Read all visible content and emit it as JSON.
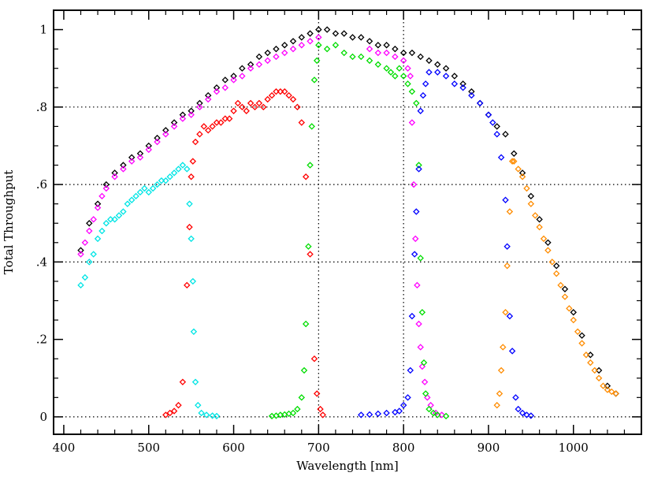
{
  "chart_data": {
    "type": "scatter",
    "title": "",
    "xlabel": "Wavelength [nm]",
    "ylabel": "Total Throughput",
    "xlim": [
      388,
      1080
    ],
    "ylim": [
      -0.045,
      1.05
    ],
    "x_ticks": [
      400,
      500,
      600,
      700,
      800,
      900,
      1000
    ],
    "x_tick_labels": [
      "400",
      "500",
      "600",
      "700",
      "800",
      "900",
      "1000"
    ],
    "y_ticks": [
      0,
      0.2,
      0.4,
      0.6,
      0.8,
      1
    ],
    "y_tick_labels": [
      "0",
      ".2",
      ".4",
      ".6",
      ".8",
      "1"
    ],
    "grid": {
      "horizontal_dotted": [
        0,
        0.4,
        0.6,
        0.8
      ],
      "vertical_dotted": [
        700,
        800
      ]
    },
    "marker": "open-diamond",
    "series": [
      {
        "name": "total",
        "color": "#000000",
        "points": [
          [
            420,
            0.43
          ],
          [
            430,
            0.5
          ],
          [
            440,
            0.55
          ],
          [
            450,
            0.6
          ],
          [
            460,
            0.63
          ],
          [
            470,
            0.65
          ],
          [
            480,
            0.67
          ],
          [
            490,
            0.68
          ],
          [
            500,
            0.7
          ],
          [
            510,
            0.72
          ],
          [
            520,
            0.74
          ],
          [
            530,
            0.76
          ],
          [
            540,
            0.78
          ],
          [
            550,
            0.79
          ],
          [
            560,
            0.81
          ],
          [
            570,
            0.83
          ],
          [
            580,
            0.85
          ],
          [
            590,
            0.87
          ],
          [
            600,
            0.88
          ],
          [
            610,
            0.9
          ],
          [
            620,
            0.91
          ],
          [
            630,
            0.93
          ],
          [
            640,
            0.94
          ],
          [
            650,
            0.95
          ],
          [
            660,
            0.96
          ],
          [
            670,
            0.97
          ],
          [
            680,
            0.98
          ],
          [
            690,
            0.99
          ],
          [
            700,
            1.0
          ],
          [
            710,
            1.0
          ],
          [
            720,
            0.99
          ],
          [
            730,
            0.99
          ],
          [
            740,
            0.98
          ],
          [
            750,
            0.98
          ],
          [
            760,
            0.97
          ],
          [
            770,
            0.96
          ],
          [
            780,
            0.96
          ],
          [
            790,
            0.95
          ],
          [
            800,
            0.94
          ],
          [
            810,
            0.94
          ],
          [
            820,
            0.93
          ],
          [
            830,
            0.92
          ],
          [
            840,
            0.91
          ],
          [
            850,
            0.9
          ],
          [
            860,
            0.88
          ],
          [
            870,
            0.86
          ],
          [
            880,
            0.84
          ],
          [
            890,
            0.81
          ],
          [
            900,
            0.78
          ],
          [
            910,
            0.75
          ],
          [
            920,
            0.73
          ],
          [
            930,
            0.68
          ],
          [
            940,
            0.63
          ],
          [
            950,
            0.57
          ],
          [
            960,
            0.51
          ],
          [
            970,
            0.45
          ],
          [
            980,
            0.39
          ],
          [
            990,
            0.33
          ],
          [
            1000,
            0.27
          ],
          [
            1010,
            0.21
          ],
          [
            1020,
            0.16
          ],
          [
            1030,
            0.12
          ],
          [
            1040,
            0.08
          ],
          [
            1050,
            0.06
          ]
        ]
      },
      {
        "name": "magenta",
        "color": "#ff00ff",
        "points": [
          [
            420,
            0.42
          ],
          [
            425,
            0.45
          ],
          [
            430,
            0.48
          ],
          [
            435,
            0.51
          ],
          [
            440,
            0.54
          ],
          [
            445,
            0.57
          ],
          [
            450,
            0.59
          ],
          [
            460,
            0.62
          ],
          [
            470,
            0.64
          ],
          [
            480,
            0.66
          ],
          [
            490,
            0.67
          ],
          [
            500,
            0.69
          ],
          [
            510,
            0.71
          ],
          [
            520,
            0.73
          ],
          [
            530,
            0.75
          ],
          [
            540,
            0.77
          ],
          [
            550,
            0.78
          ],
          [
            560,
            0.8
          ],
          [
            570,
            0.82
          ],
          [
            580,
            0.84
          ],
          [
            590,
            0.85
          ],
          [
            600,
            0.87
          ],
          [
            610,
            0.88
          ],
          [
            620,
            0.9
          ],
          [
            630,
            0.91
          ],
          [
            640,
            0.92
          ],
          [
            650,
            0.93
          ],
          [
            660,
            0.94
          ],
          [
            670,
            0.95
          ],
          [
            680,
            0.96
          ],
          [
            690,
            0.97
          ],
          [
            700,
            0.98
          ],
          [
            760,
            0.95
          ],
          [
            770,
            0.94
          ],
          [
            780,
            0.94
          ],
          [
            790,
            0.93
          ],
          [
            800,
            0.92
          ],
          [
            805,
            0.9
          ],
          [
            808,
            0.88
          ],
          [
            810,
            0.76
          ],
          [
            812,
            0.6
          ],
          [
            814,
            0.46
          ],
          [
            816,
            0.34
          ],
          [
            818,
            0.24
          ],
          [
            820,
            0.18
          ],
          [
            822,
            0.13
          ],
          [
            825,
            0.09
          ],
          [
            828,
            0.05
          ],
          [
            832,
            0.03
          ],
          [
            838,
            0.01
          ],
          [
            845,
            0.005
          ]
        ]
      },
      {
        "name": "cyan",
        "color": "#00e5e5",
        "points": [
          [
            420,
            0.34
          ],
          [
            425,
            0.36
          ],
          [
            430,
            0.4
          ],
          [
            435,
            0.42
          ],
          [
            440,
            0.46
          ],
          [
            445,
            0.48
          ],
          [
            450,
            0.5
          ],
          [
            455,
            0.51
          ],
          [
            460,
            0.51
          ],
          [
            465,
            0.52
          ],
          [
            470,
            0.53
          ],
          [
            475,
            0.55
          ],
          [
            480,
            0.56
          ],
          [
            485,
            0.57
          ],
          [
            490,
            0.58
          ],
          [
            495,
            0.59
          ],
          [
            500,
            0.58
          ],
          [
            505,
            0.59
          ],
          [
            510,
            0.6
          ],
          [
            515,
            0.61
          ],
          [
            520,
            0.61
          ],
          [
            525,
            0.62
          ],
          [
            530,
            0.63
          ],
          [
            535,
            0.64
          ],
          [
            540,
            0.65
          ],
          [
            545,
            0.64
          ],
          [
            548,
            0.55
          ],
          [
            550,
            0.46
          ],
          [
            552,
            0.35
          ],
          [
            553,
            0.22
          ],
          [
            555,
            0.09
          ],
          [
            558,
            0.03
          ],
          [
            562,
            0.01
          ],
          [
            568,
            0.005
          ],
          [
            575,
            0.003
          ],
          [
            580,
            0.002
          ]
        ]
      },
      {
        "name": "red",
        "color": "#ff0000",
        "points": [
          [
            520,
            0.005
          ],
          [
            525,
            0.01
          ],
          [
            530,
            0.015
          ],
          [
            535,
            0.03
          ],
          [
            540,
            0.09
          ],
          [
            545,
            0.34
          ],
          [
            548,
            0.49
          ],
          [
            550,
            0.62
          ],
          [
            552,
            0.66
          ],
          [
            555,
            0.71
          ],
          [
            560,
            0.73
          ],
          [
            565,
            0.75
          ],
          [
            570,
            0.74
          ],
          [
            575,
            0.75
          ],
          [
            580,
            0.76
          ],
          [
            585,
            0.76
          ],
          [
            590,
            0.77
          ],
          [
            595,
            0.77
          ],
          [
            600,
            0.79
          ],
          [
            605,
            0.81
          ],
          [
            610,
            0.8
          ],
          [
            615,
            0.79
          ],
          [
            620,
            0.81
          ],
          [
            625,
            0.8
          ],
          [
            630,
            0.81
          ],
          [
            635,
            0.8
          ],
          [
            640,
            0.82
          ],
          [
            645,
            0.83
          ],
          [
            650,
            0.84
          ],
          [
            655,
            0.84
          ],
          [
            660,
            0.84
          ],
          [
            665,
            0.83
          ],
          [
            670,
            0.82
          ],
          [
            675,
            0.8
          ],
          [
            680,
            0.76
          ],
          [
            685,
            0.62
          ],
          [
            690,
            0.42
          ],
          [
            695,
            0.15
          ],
          [
            698,
            0.06
          ],
          [
            702,
            0.02
          ],
          [
            705,
            0.005
          ]
        ]
      },
      {
        "name": "green",
        "color": "#00dd00",
        "points": [
          [
            645,
            0.002
          ],
          [
            650,
            0.003
          ],
          [
            655,
            0.005
          ],
          [
            660,
            0.006
          ],
          [
            665,
            0.008
          ],
          [
            670,
            0.01
          ],
          [
            675,
            0.02
          ],
          [
            680,
            0.05
          ],
          [
            683,
            0.12
          ],
          [
            685,
            0.24
          ],
          [
            688,
            0.44
          ],
          [
            690,
            0.65
          ],
          [
            692,
            0.75
          ],
          [
            695,
            0.87
          ],
          [
            698,
            0.92
          ],
          [
            700,
            0.96
          ],
          [
            710,
            0.95
          ],
          [
            720,
            0.96
          ],
          [
            730,
            0.94
          ],
          [
            740,
            0.93
          ],
          [
            750,
            0.93
          ],
          [
            760,
            0.92
          ],
          [
            770,
            0.91
          ],
          [
            780,
            0.9
          ],
          [
            785,
            0.89
          ],
          [
            790,
            0.88
          ],
          [
            795,
            0.9
          ],
          [
            800,
            0.88
          ],
          [
            805,
            0.86
          ],
          [
            810,
            0.84
          ],
          [
            815,
            0.81
          ],
          [
            818,
            0.65
          ],
          [
            820,
            0.41
          ],
          [
            822,
            0.27
          ],
          [
            824,
            0.14
          ],
          [
            826,
            0.06
          ],
          [
            830,
            0.02
          ],
          [
            835,
            0.01
          ],
          [
            840,
            0.005
          ],
          [
            850,
            0.002
          ]
        ]
      },
      {
        "name": "blue",
        "color": "#0000ff",
        "points": [
          [
            750,
            0.005
          ],
          [
            760,
            0.006
          ],
          [
            770,
            0.008
          ],
          [
            780,
            0.01
          ],
          [
            790,
            0.012
          ],
          [
            795,
            0.015
          ],
          [
            800,
            0.03
          ],
          [
            805,
            0.05
          ],
          [
            808,
            0.12
          ],
          [
            810,
            0.26
          ],
          [
            813,
            0.42
          ],
          [
            815,
            0.53
          ],
          [
            818,
            0.64
          ],
          [
            820,
            0.79
          ],
          [
            823,
            0.83
          ],
          [
            826,
            0.86
          ],
          [
            830,
            0.89
          ],
          [
            840,
            0.89
          ],
          [
            850,
            0.88
          ],
          [
            860,
            0.86
          ],
          [
            870,
            0.85
          ],
          [
            880,
            0.83
          ],
          [
            890,
            0.81
          ],
          [
            900,
            0.78
          ],
          [
            905,
            0.76
          ],
          [
            910,
            0.73
          ],
          [
            915,
            0.67
          ],
          [
            920,
            0.56
          ],
          [
            922,
            0.44
          ],
          [
            925,
            0.26
          ],
          [
            928,
            0.17
          ],
          [
            932,
            0.05
          ],
          [
            935,
            0.02
          ],
          [
            940,
            0.01
          ],
          [
            945,
            0.005
          ],
          [
            950,
            0.003
          ]
        ]
      },
      {
        "name": "orange",
        "color": "#ff8c00",
        "points": [
          [
            910,
            0.03
          ],
          [
            913,
            0.06
          ],
          [
            915,
            0.12
          ],
          [
            917,
            0.18
          ],
          [
            920,
            0.27
          ],
          [
            922,
            0.39
          ],
          [
            925,
            0.53
          ],
          [
            928,
            0.66
          ],
          [
            930,
            0.66
          ],
          [
            935,
            0.64
          ],
          [
            940,
            0.62
          ],
          [
            945,
            0.59
          ],
          [
            950,
            0.55
          ],
          [
            955,
            0.52
          ],
          [
            960,
            0.49
          ],
          [
            965,
            0.46
          ],
          [
            970,
            0.43
          ],
          [
            975,
            0.4
          ],
          [
            980,
            0.37
          ],
          [
            985,
            0.34
          ],
          [
            990,
            0.31
          ],
          [
            995,
            0.28
          ],
          [
            1000,
            0.25
          ],
          [
            1005,
            0.22
          ],
          [
            1010,
            0.19
          ],
          [
            1015,
            0.16
          ],
          [
            1020,
            0.14
          ],
          [
            1025,
            0.12
          ],
          [
            1030,
            0.1
          ],
          [
            1035,
            0.08
          ],
          [
            1040,
            0.07
          ],
          [
            1045,
            0.065
          ],
          [
            1050,
            0.06
          ]
        ]
      }
    ]
  }
}
